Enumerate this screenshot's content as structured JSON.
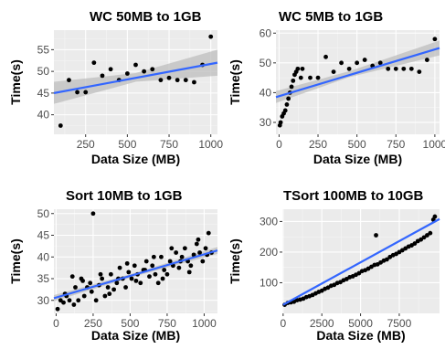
{
  "colors": {
    "panel_bg": "#ebebeb",
    "grid_major": "#ffffff",
    "grid_minor": "#f5f5f5",
    "point": "#000000",
    "fit_line": "#3366ff",
    "ci_band": "#bdbdbd"
  },
  "chart_data": [
    {
      "type": "scatter",
      "title": "WC 50MB to 1GB",
      "xlabel": "Data Size (MB)",
      "ylabel": "Time(s)",
      "xlim": [
        60,
        1040
      ],
      "ylim": [
        35.5,
        59.5
      ],
      "xticks": [
        250,
        500,
        750,
        1000
      ],
      "yticks": [
        40,
        45,
        50,
        55
      ],
      "x": [
        100,
        150,
        200,
        250,
        300,
        350,
        400,
        450,
        500,
        550,
        600,
        650,
        700,
        750,
        800,
        850,
        900,
        950,
        1000
      ],
      "y": [
        37.5,
        48,
        45.2,
        45.2,
        52,
        49,
        50.5,
        48,
        49.5,
        51.5,
        50,
        50.5,
        48,
        48.5,
        48,
        48,
        47.5,
        51.5,
        58
      ],
      "fit": {
        "x0": 60,
        "y0": 45.0,
        "x1": 1040,
        "y1": 52.0
      },
      "band": [
        {
          "x": 60,
          "lo": 42.5,
          "hi": 47.6
        },
        {
          "x": 550,
          "lo": 47.6,
          "hi": 49.6
        },
        {
          "x": 1040,
          "lo": 49.0,
          "hi": 55.0
        }
      ]
    },
    {
      "type": "scatter",
      "title": "WC 5MB to 1GB",
      "xlabel": "Data Size (MB)",
      "ylabel": "Time(s)",
      "xlim": [
        -20,
        1030
      ],
      "ylim": [
        26,
        61
      ],
      "xticks": [
        0,
        250,
        500,
        750,
        1000
      ],
      "yticks": [
        30,
        40,
        50,
        60
      ],
      "x": [
        5,
        10,
        20,
        30,
        40,
        50,
        60,
        70,
        80,
        90,
        100,
        110,
        120,
        140,
        150,
        200,
        250,
        300,
        350,
        400,
        450,
        500,
        550,
        600,
        650,
        700,
        750,
        800,
        850,
        900,
        950,
        1000
      ],
      "y": [
        29,
        30,
        32,
        33,
        34,
        36,
        38,
        40,
        42,
        44,
        46,
        47,
        48,
        45,
        48,
        45,
        45,
        52,
        47,
        50,
        48,
        50,
        51,
        49,
        50,
        48,
        48,
        48,
        48,
        47,
        51,
        58
      ],
      "fit": {
        "x0": -20,
        "y0": 38.5,
        "x1": 1030,
        "y1": 55.0
      },
      "band": [
        {
          "x": -20,
          "lo": 36.5,
          "hi": 40.5
        },
        {
          "x": 450,
          "lo": 45.2,
          "hi": 47.2
        },
        {
          "x": 1030,
          "lo": 52.5,
          "hi": 57.5
        }
      ]
    },
    {
      "type": "scatter",
      "title": "Sort 10MB to 1GB",
      "xlabel": "Data Size (MB)",
      "ylabel": "Time(s)",
      "xlim": [
        -15,
        1090
      ],
      "ylim": [
        27,
        51
      ],
      "xticks": [
        0,
        250,
        500,
        750,
        1000
      ],
      "yticks": [
        30,
        35,
        40,
        45,
        50
      ],
      "x": [
        10,
        30,
        50,
        70,
        90,
        110,
        130,
        150,
        170,
        190,
        210,
        230,
        250,
        270,
        290,
        310,
        330,
        350,
        370,
        390,
        410,
        430,
        450,
        470,
        490,
        510,
        530,
        550,
        570,
        590,
        610,
        630,
        650,
        670,
        690,
        710,
        730,
        750,
        770,
        790,
        810,
        830,
        850,
        870,
        890,
        910,
        930,
        950,
        970,
        990,
        1010,
        1030,
        1050,
        60,
        120,
        180,
        240,
        300,
        360,
        420,
        480,
        540,
        600,
        660,
        720,
        780,
        840,
        900,
        960,
        1020
      ],
      "y": [
        28,
        30,
        29.5,
        31,
        30,
        35.5,
        33,
        30,
        35,
        31,
        33,
        34,
        50,
        30,
        33.5,
        35,
        31,
        33,
        36,
        32.5,
        34,
        37.5,
        35,
        33,
        36.5,
        35,
        38,
        36,
        34,
        37,
        39,
        35.5,
        38,
        36,
        34,
        40,
        37,
        36,
        39,
        38,
        41,
        37.5,
        40,
        42,
        39,
        38,
        40.5,
        43,
        41,
        39,
        42,
        45.5,
        41,
        31.5,
        29,
        34.5,
        32,
        36,
        31.5,
        35,
        38.5,
        34.5,
        37,
        40,
        35,
        42,
        39,
        36.5,
        44,
        40.5
      ],
      "fit": {
        "x0": -15,
        "y0": 30.5,
        "x1": 1090,
        "y1": 41.5
      },
      "band": [
        {
          "x": -15,
          "lo": 29.8,
          "hi": 31.2
        },
        {
          "x": 540,
          "lo": 35.6,
          "hi": 36.4
        },
        {
          "x": 1090,
          "lo": 40.7,
          "hi": 42.3
        }
      ]
    },
    {
      "type": "scatter",
      "title": "TSort 100MB to 10GB",
      "xlabel": "Data Size (MB)",
      "ylabel": "Time(s)",
      "xlim": [
        -50,
        10100
      ],
      "ylim": [
        0,
        340
      ],
      "xticks": [
        0,
        2500,
        5000,
        7500
      ],
      "yticks": [
        100,
        200,
        300
      ],
      "x": [
        100,
        300,
        500,
        700,
        900,
        1100,
        1300,
        1500,
        1700,
        1900,
        2100,
        2300,
        2500,
        2700,
        2900,
        3100,
        3300,
        3500,
        3700,
        3900,
        4100,
        4300,
        4500,
        4700,
        4900,
        5100,
        5300,
        5500,
        5700,
        5900,
        6000,
        6100,
        6300,
        6500,
        6700,
        6900,
        7100,
        7300,
        7500,
        7700,
        7900,
        8100,
        8300,
        8500,
        8700,
        8900,
        9100,
        9300,
        9500,
        9700,
        9800
      ],
      "y": [
        28,
        34,
        36,
        38,
        43,
        45,
        48,
        53,
        56,
        60,
        65,
        70,
        74,
        80,
        84,
        90,
        93,
        99,
        102,
        108,
        112,
        118,
        121,
        126,
        131,
        138,
        141,
        146,
        152,
        158,
        255,
        160,
        166,
        172,
        176,
        184,
        190,
        194,
        200,
        206,
        212,
        218,
        222,
        228,
        236,
        241,
        248,
        255,
        262,
        306,
        316
      ],
      "fit": {
        "x0": 0,
        "y0": 28,
        "x1": 10100,
        "y1": 308
      },
      "band": [
        {
          "x": 0,
          "lo": 25,
          "hi": 31
        },
        {
          "x": 5000,
          "lo": 166,
          "hi": 170
        },
        {
          "x": 10100,
          "lo": 304,
          "hi": 312
        }
      ]
    }
  ]
}
